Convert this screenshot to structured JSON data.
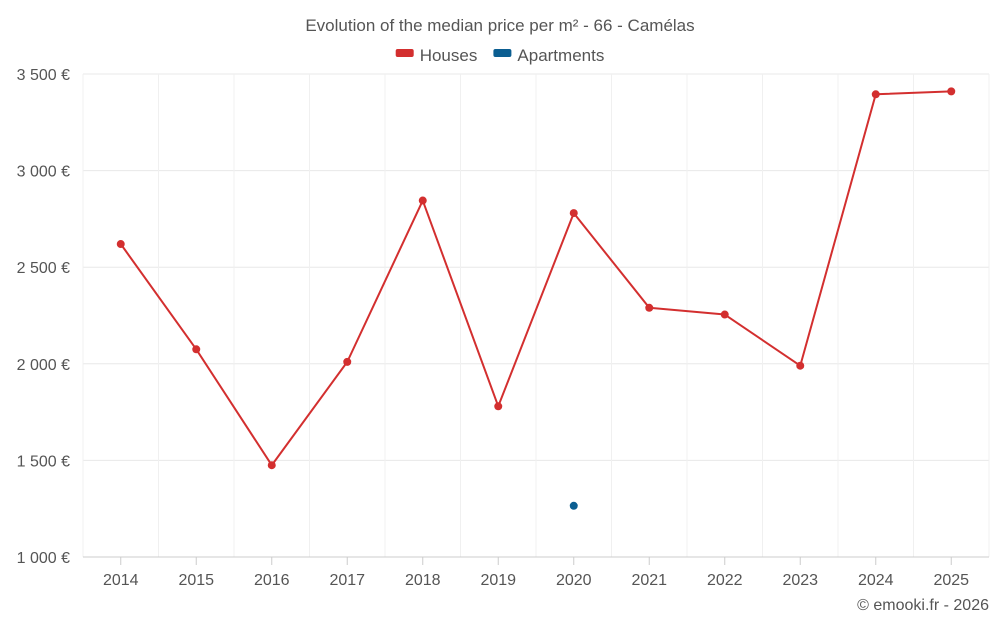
{
  "chart_data": {
    "type": "line",
    "title": "Evolution of the median price per m² - 66 - Camélas",
    "categories": [
      "2014",
      "2015",
      "2016",
      "2017",
      "2018",
      "2019",
      "2020",
      "2021",
      "2022",
      "2023",
      "2024",
      "2025"
    ],
    "series": [
      {
        "name": "Houses",
        "color": "#d32f2f",
        "values": [
          2620,
          2075,
          1475,
          2010,
          2845,
          1780,
          2780,
          2290,
          2255,
          1990,
          3395,
          3410
        ]
      },
      {
        "name": "Apartments",
        "color": "#0b5e91",
        "values": [
          null,
          null,
          null,
          null,
          null,
          null,
          1265,
          null,
          null,
          null,
          null,
          null
        ]
      }
    ],
    "y_ticks": [
      1000,
      1500,
      2000,
      2500,
      3000,
      3500
    ],
    "y_tick_labels": [
      "1 000 €",
      "1 500 €",
      "2 000 €",
      "2 500 €",
      "3 000 €",
      "3 500 €"
    ],
    "ylim": [
      1000,
      3500
    ],
    "xlabel": "",
    "ylabel": "",
    "grid": true,
    "legend_position": "top-center"
  },
  "credit": "© emooki.fr - 2026"
}
